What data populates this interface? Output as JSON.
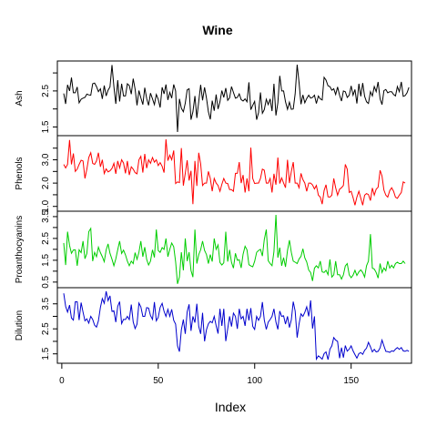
{
  "chart_data": {
    "type": "line",
    "title": "Wine",
    "xlabel": "Index",
    "xlim": [
      1,
      178
    ],
    "x_ticks": [
      "0",
      "50",
      "100",
      "150"
    ],
    "x_tick_values": [
      0,
      50,
      100,
      150
    ],
    "series": [
      {
        "name": "Ash",
        "color": "#000000",
        "ylim": [
          1.36,
          3.23
        ],
        "y_ticks": [
          "1.5",
          "2.5"
        ],
        "y_tick_values": [
          1.5,
          2.0,
          2.5,
          3.0
        ],
        "values": [
          2.43,
          2.14,
          2.67,
          2.5,
          2.87,
          2.45,
          2.45,
          2.61,
          2.17,
          2.27,
          2.3,
          2.32,
          2.41,
          2.39,
          2.38,
          2.7,
          2.72,
          2.62,
          2.48,
          2.56,
          2.28,
          2.65,
          2.36,
          2.52,
          2.61,
          3.22,
          2.62,
          2.14,
          2.8,
          2.21,
          2.7,
          2.36,
          2.36,
          2.7,
          2.65,
          2.41,
          2.84,
          2.55,
          2.1,
          2.51,
          2.31,
          2.12,
          2.59,
          2.29,
          2.1,
          2.44,
          2.28,
          2.12,
          2.4,
          2.27,
          2.04,
          2.6,
          2.42,
          2.68,
          2.25,
          2.46,
          2.3,
          2.68,
          2.5,
          1.36,
          2.28,
          2.02,
          1.92,
          2.16,
          2.53,
          2.56,
          1.7,
          1.92,
          2.36,
          1.75,
          2.21,
          2.67,
          2.24,
          2.6,
          2.3,
          1.92,
          1.71,
          2.23,
          1.95,
          2.4,
          2.0,
          2.2,
          2.51,
          2.32,
          2.58,
          2.24,
          2.31,
          2.62,
          2.46,
          2.3,
          2.32,
          2.42,
          2.26,
          2.22,
          2.28,
          2.2,
          2.74,
          1.98,
          2.1,
          2.21,
          1.7,
          1.9,
          2.46,
          1.88,
          1.98,
          2.27,
          2.12,
          2.28,
          1.94,
          2.7,
          1.82,
          2.17,
          2.92,
          2.5,
          2.5,
          2.2,
          1.99,
          2.19,
          1.99,
          2.0,
          2.42,
          3.23,
          2.73,
          2.13,
          2.39,
          2.17,
          2.29,
          2.38,
          2.3,
          2.32,
          2.38,
          2.15,
          2.36,
          2.28,
          2.25,
          2.88,
          2.8,
          2.64,
          2.62,
          2.52,
          2.56,
          2.4,
          2.61,
          2.38,
          2.22,
          2.5,
          2.48,
          2.32,
          2.38,
          2.64,
          2.38,
          2.54,
          2.15,
          2.7,
          2.35,
          2.72,
          2.35,
          2.2,
          2.15,
          2.48,
          2.36,
          2.62,
          2.48,
          2.75,
          2.28,
          2.12,
          2.51,
          2.54,
          2.45,
          2.48,
          2.48,
          2.4,
          2.36,
          2.62,
          2.48,
          2.75,
          2.35,
          2.37,
          2.45,
          2.6
        ]
      },
      {
        "name": "Phenols",
        "color": "#ff0000",
        "ylim": [
          0.95,
          3.88
        ],
        "y_ticks": [
          "1.0",
          "2.0",
          "3.0"
        ],
        "y_tick_values": [
          1.0,
          1.5,
          2.0,
          2.5,
          3.0,
          3.5
        ],
        "values": [
          2.8,
          2.65,
          2.8,
          3.85,
          2.8,
          3.27,
          2.5,
          2.6,
          2.8,
          2.98,
          2.95,
          2.2,
          2.6,
          3.1,
          3.3,
          2.85,
          2.8,
          2.95,
          3.3,
          2.7,
          3.0,
          2.41,
          2.61,
          2.48,
          2.53,
          2.63,
          2.85,
          2.4,
          2.95,
          2.65,
          3.0,
          2.86,
          2.42,
          2.95,
          2.35,
          2.7,
          2.6,
          2.45,
          2.4,
          3.0,
          3.15,
          2.45,
          3.25,
          2.64,
          3.0,
          2.85,
          3.1,
          2.9,
          3.0,
          2.75,
          2.88,
          2.72,
          2.45,
          3.88,
          2.96,
          3.2,
          3.0,
          3.4,
          1.98,
          2.05,
          2.02,
          3.5,
          1.89,
          2.42,
          2.98,
          2.11,
          2.53,
          1.1,
          2.95,
          1.88,
          3.3,
          2.83,
          1.9,
          2.0,
          2.0,
          2.5,
          2.2,
          1.65,
          2.2,
          2.0,
          1.9,
          1.65,
          1.95,
          2.2,
          2.0,
          1.98,
          1.72,
          1.72,
          1.65,
          2.42,
          2.42,
          2.9,
          2.0,
          2.35,
          1.6,
          2.2,
          1.65,
          3.52,
          2.2,
          1.98,
          2.0,
          2.0,
          2.2,
          2.6,
          2.55,
          2.0,
          2.0,
          2.2,
          1.6,
          2.4,
          1.93,
          3.1,
          1.98,
          2.22,
          2.0,
          1.8,
          3.0,
          2.0,
          2.5,
          2.9,
          2.0,
          2.0,
          1.8,
          2.42,
          2.15,
          2.0,
          1.65,
          2.0,
          2.0,
          1.92,
          1.75,
          1.9,
          1.48,
          1.4,
          1.1,
          1.68,
          1.93,
          1.41,
          1.4,
          1.48,
          2.2,
          1.8,
          1.48,
          1.74,
          1.8,
          1.9,
          2.8,
          2.6,
          1.6,
          1.65,
          1.38,
          1.05,
          1.4,
          1.65,
          1.35,
          1.05,
          1.48,
          1.55,
          1.51,
          1.25,
          1.79,
          1.48,
          1.74,
          1.82,
          2.55,
          2.3,
          1.7,
          1.48,
          1.4,
          1.68,
          1.8,
          1.65,
          1.39,
          1.35,
          1.48,
          1.6,
          2.05,
          2.0
        ]
      },
      {
        "name": "Proanthocyanins",
        "color": "#00cd00",
        "ylim": [
          0.41,
          3.58
        ],
        "y_ticks": [
          "0.5",
          "1.5",
          "2.5",
          "3.5"
        ],
        "y_tick_values": [
          0.5,
          1.0,
          1.5,
          2.0,
          2.5,
          3.0,
          3.5
        ],
        "values": [
          2.29,
          1.28,
          2.81,
          2.18,
          1.82,
          1.97,
          1.98,
          1.25,
          1.98,
          1.85,
          2.38,
          1.57,
          1.81,
          2.81,
          2.96,
          1.46,
          1.86,
          1.66,
          2.1,
          1.85,
          1.66,
          1.43,
          1.97,
          2.25,
          1.82,
          1.55,
          1.25,
          1.56,
          1.98,
          2.38,
          1.81,
          1.96,
          1.75,
          1.46,
          1.25,
          1.46,
          1.35,
          1.85,
          1.54,
          1.86,
          2.38,
          1.66,
          2.1,
          1.54,
          1.28,
          1.46,
          1.98,
          1.63,
          2.91,
          1.95,
          1.86,
          2.08,
          2.0,
          2.5,
          1.66,
          2.0,
          2.29,
          2.12,
          1.43,
          0.42,
          0.73,
          1.87,
          1.04,
          2.5,
          1.46,
          1.87,
          1.03,
          0.73,
          2.91,
          1.35,
          1.76,
          1.98,
          2.38,
          1.95,
          1.76,
          1.35,
          1.76,
          1.44,
          2.5,
          2.0,
          2.2,
          1.4,
          1.28,
          1.38,
          2.81,
          1.44,
          1.98,
          1.4,
          1.14,
          1.82,
          1.5,
          1.52,
          1.15,
          1.78,
          2.14,
          1.98,
          1.3,
          1.24,
          1.2,
          1.45,
          1.86,
          1.95,
          2.0,
          1.69,
          2.45,
          2.91,
          1.48,
          1.35,
          1.25,
          1.9,
          3.58,
          1.62,
          2.08,
          1.25,
          1.62,
          1.2,
          1.95,
          2.42,
          1.86,
          1.46,
          1.41,
          1.35,
          1.56,
          1.68,
          2.03,
          1.61,
          1.42,
          1.05,
          0.94,
          0.55,
          1.14,
          1.25,
          1.15,
          1.46,
          0.97,
          0.94,
          1.04,
          0.84,
          1.54,
          0.73,
          0.83,
          1.46,
          0.84,
          0.84,
          0.64,
          0.83,
          1.24,
          1.35,
          0.83,
          0.7,
          0.82,
          1.04,
          0.8,
          0.97,
          1.06,
          0.94,
          0.73,
          1.25,
          1.46,
          2.7,
          1.14,
          1.1,
          0.94,
          0.68,
          1.35,
          0.94,
          1.15,
          1.02,
          1.46,
          1.14,
          1.27,
          1.15,
          1.35,
          1.41,
          1.35,
          1.35,
          1.46,
          1.35
        ]
      },
      {
        "name": "Dilution",
        "color": "#0000cd",
        "ylim": [
          1.27,
          4.0
        ],
        "y_ticks": [
          "1.5",
          "2.5",
          "3.5"
        ],
        "y_tick_values": [
          1.5,
          2.0,
          2.5,
          3.0,
          3.5
        ],
        "values": [
          3.92,
          3.4,
          3.17,
          3.45,
          2.93,
          2.85,
          3.58,
          3.58,
          2.85,
          3.55,
          3.17,
          2.82,
          2.9,
          2.73,
          3.0,
          2.88,
          2.65,
          2.57,
          2.82,
          3.36,
          3.71,
          3.52,
          4.0,
          3.63,
          3.82,
          3.2,
          3.22,
          2.77,
          3.4,
          3.59,
          2.71,
          2.88,
          2.87,
          3.0,
          2.87,
          3.47,
          2.78,
          2.51,
          2.69,
          3.53,
          3.38,
          3.0,
          3.0,
          3.35,
          3.33,
          3.03,
          2.88,
          3.57,
          2.82,
          2.96,
          3.36,
          3.52,
          3.2,
          3.0,
          3.28,
          3.0,
          3.28,
          2.84,
          2.69,
          1.82,
          1.59,
          2.46,
          2.87,
          2.3,
          3.18,
          3.48,
          2.42,
          3.0,
          2.75,
          3.5,
          2.6,
          2.3,
          3.14,
          2.0,
          2.47,
          2.7,
          2.8,
          2.74,
          3.0,
          2.63,
          2.31,
          3.3,
          2.62,
          3.3,
          2.01,
          2.5,
          3.0,
          2.59,
          3.13,
          3.0,
          2.5,
          3.3,
          2.9,
          3.0,
          2.62,
          3.3,
          2.84,
          3.33,
          2.6,
          2.48,
          3.0,
          2.84,
          3.0,
          3.57,
          2.85,
          2.48,
          2.77,
          2.87,
          3.0,
          3.3,
          2.77,
          2.48,
          3.21,
          3.0,
          3.02,
          2.69,
          3.0,
          2.55,
          2.86,
          3.59,
          3.21,
          2.15,
          2.7,
          3.1,
          3.0,
          3.16,
          3.38,
          3.0,
          3.64,
          2.51,
          3.0,
          1.29,
          1.42,
          1.36,
          1.29,
          1.51,
          1.58,
          1.27,
          1.69,
          1.82,
          2.15,
          2.05,
          2.0,
          1.33,
          1.75,
          1.35,
          1.83,
          1.61,
          1.69,
          1.82,
          1.62,
          1.47,
          1.33,
          1.51,
          1.55,
          1.48,
          1.64,
          1.73,
          1.96,
          1.78,
          1.58,
          1.68,
          1.58,
          1.6,
          1.74,
          2.05,
          1.82,
          1.6,
          1.59,
          1.56,
          1.62,
          1.6,
          1.69,
          1.75,
          1.68,
          1.75,
          1.62,
          1.6,
          1.64,
          1.6
        ]
      }
    ]
  }
}
